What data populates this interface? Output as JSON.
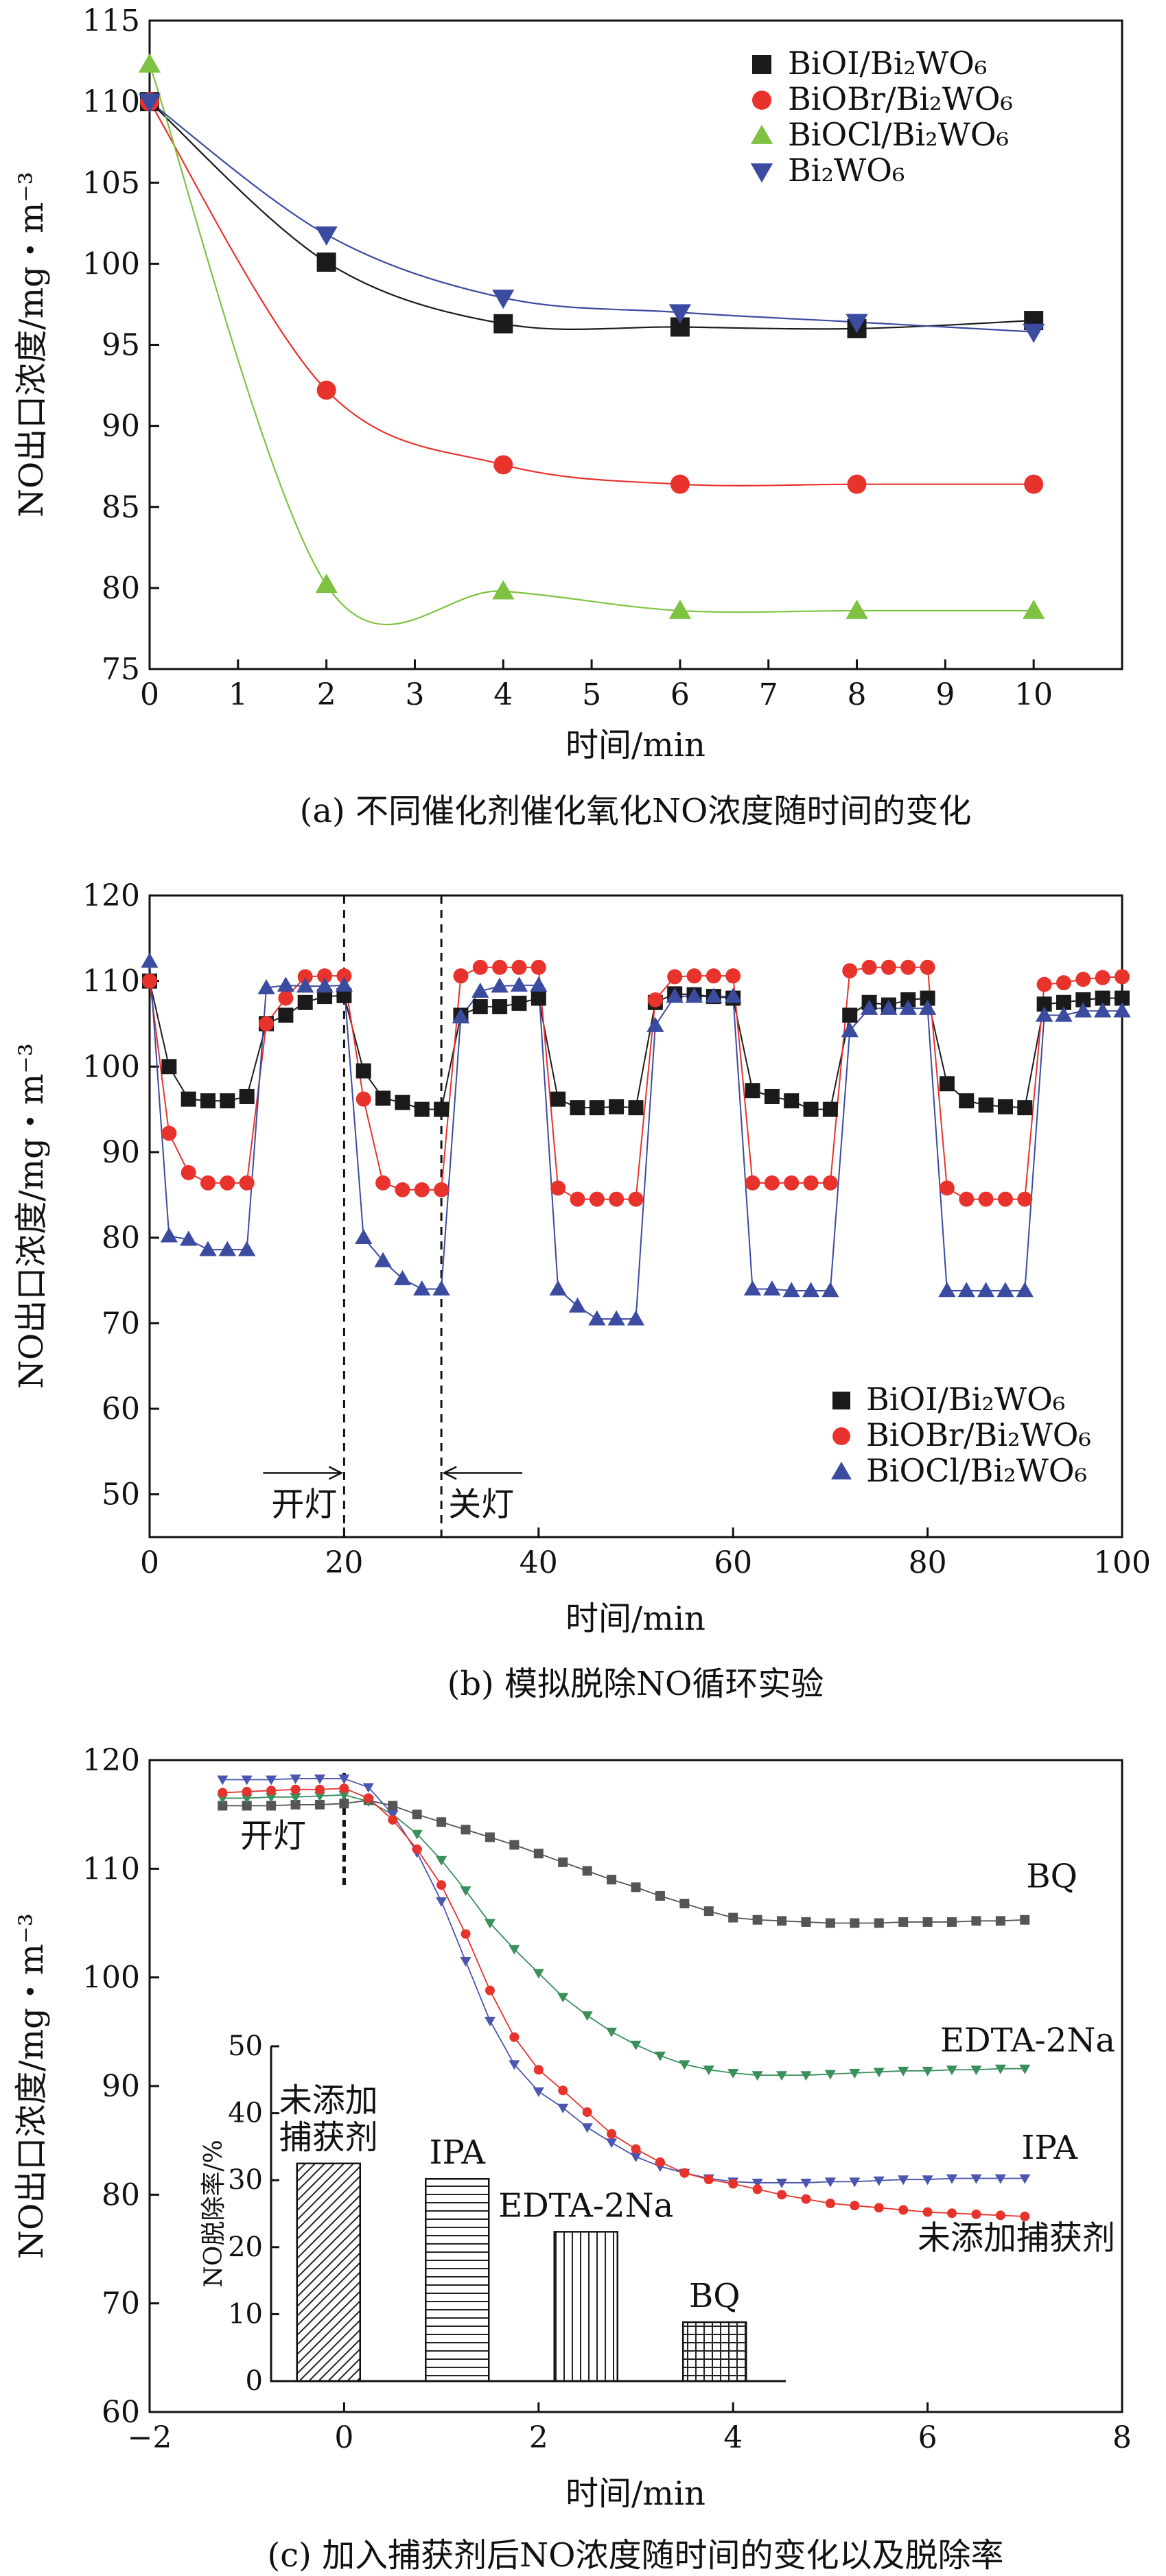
{
  "chart_data": [
    {
      "type": "line",
      "id": "a",
      "caption": "(a) 不同催化剂催化氧化NO浓度随时间的变化",
      "xlabel": "时间/min",
      "ylabel": "NO出口浓度/mg・m⁻³",
      "xlim": [
        0,
        11
      ],
      "ylim": [
        75,
        115
      ],
      "xticks": [
        0,
        1,
        2,
        3,
        4,
        5,
        6,
        7,
        8,
        9,
        10
      ],
      "yticks": [
        75,
        80,
        85,
        90,
        95,
        100,
        105,
        110,
        115
      ],
      "legend_position": "top-right",
      "series": [
        {
          "name": "BiOI/Bi₂WO₆",
          "color": "#1a1a1a",
          "marker": "square",
          "x": [
            0,
            2,
            4,
            6,
            8,
            10
          ],
          "y": [
            110.0,
            100.1,
            96.3,
            96.1,
            96.0,
            96.5
          ]
        },
        {
          "name": "BiOBr/Bi₂WO₆",
          "color": "#e8322c",
          "marker": "circle",
          "x": [
            0,
            2,
            4,
            6,
            8,
            10
          ],
          "y": [
            110.0,
            92.2,
            87.6,
            86.4,
            86.4,
            86.4
          ]
        },
        {
          "name": "BiOCl/Bi₂WO₆",
          "color": "#7fc241",
          "marker": "triangle-up",
          "x": [
            0,
            2,
            4,
            6,
            8,
            10
          ],
          "y": [
            112.3,
            80.2,
            79.8,
            78.6,
            78.6,
            78.6
          ]
        },
        {
          "name": "Bi₂WO₆",
          "color": "#3b4ba0",
          "marker": "triangle-down",
          "x": [
            0,
            2,
            4,
            6,
            8,
            10
          ],
          "y": [
            110.0,
            101.8,
            97.9,
            97.0,
            96.4,
            95.8
          ]
        }
      ]
    },
    {
      "type": "line",
      "id": "b",
      "caption": "(b) 模拟脱除NO循环实验",
      "xlabel": "时间/min",
      "ylabel": "NO出口浓度/mg・m⁻³",
      "xlim": [
        0,
        100
      ],
      "ylim": [
        45,
        120
      ],
      "xticks": [
        0,
        20,
        40,
        60,
        80,
        100
      ],
      "yticks": [
        50,
        60,
        70,
        80,
        90,
        100,
        110,
        120
      ],
      "legend_position": "bottom-right",
      "annotations": [
        {
          "text": "开灯",
          "x": 20
        },
        {
          "text": "关灯",
          "x": 30
        }
      ],
      "series": [
        {
          "name": "BiOI/Bi₂WO₆",
          "color": "#1a1a1a",
          "marker": "square",
          "x": [
            0,
            2,
            4,
            6,
            8,
            10,
            12,
            14,
            16,
            18,
            20,
            22,
            24,
            26,
            28,
            30,
            32,
            34,
            36,
            38,
            40,
            42,
            44,
            46,
            48,
            50,
            52,
            54,
            56,
            58,
            60,
            62,
            64,
            66,
            68,
            70,
            72,
            74,
            76,
            78,
            80,
            82,
            84,
            86,
            88,
            90,
            92,
            94,
            96,
            98,
            100
          ],
          "y": [
            110,
            100,
            96.2,
            96,
            96,
            96.5,
            105,
            106,
            107.5,
            108.2,
            108.3,
            99.5,
            96.3,
            95.8,
            95,
            95,
            106,
            107,
            107,
            107.4,
            108,
            96.2,
            95.2,
            95.2,
            95.3,
            95.2,
            107.5,
            108.5,
            108.4,
            108.2,
            108,
            97.2,
            96.5,
            96,
            95,
            95,
            106,
            107.5,
            107.2,
            107.8,
            108,
            98,
            96,
            95.5,
            95.3,
            95.2,
            107.3,
            107.5,
            107.8,
            108,
            108
          ]
        },
        {
          "name": "BiOBr/Bi₂WO₆",
          "color": "#e8322c",
          "marker": "circle",
          "x": [
            0,
            2,
            4,
            6,
            8,
            10,
            12,
            14,
            16,
            18,
            20,
            22,
            24,
            26,
            28,
            30,
            32,
            34,
            36,
            38,
            40,
            42,
            44,
            46,
            48,
            50,
            52,
            54,
            56,
            58,
            60,
            62,
            64,
            66,
            68,
            70,
            72,
            74,
            76,
            78,
            80,
            82,
            84,
            86,
            88,
            90,
            92,
            94,
            96,
            98,
            100
          ],
          "y": [
            110,
            92.2,
            87.6,
            86.4,
            86.4,
            86.4,
            105,
            108,
            110.5,
            110.6,
            110.6,
            96.2,
            86.4,
            85.6,
            85.6,
            85.6,
            110.6,
            111.6,
            111.6,
            111.6,
            111.6,
            85.8,
            84.5,
            84.5,
            84.5,
            84.5,
            107.8,
            110.5,
            110.6,
            110.6,
            110.6,
            86.4,
            86.4,
            86.4,
            86.4,
            86.4,
            111.2,
            111.6,
            111.6,
            111.6,
            111.6,
            85.8,
            84.5,
            84.5,
            84.5,
            84.5,
            109.6,
            109.8,
            110.2,
            110.4,
            110.5
          ]
        },
        {
          "name": "BiOCl/Bi₂WO₆",
          "color": "#3b4ba0",
          "marker": "triangle-up",
          "x": [
            0,
            2,
            4,
            6,
            8,
            10,
            12,
            14,
            16,
            18,
            20,
            22,
            24,
            26,
            28,
            30,
            32,
            34,
            36,
            38,
            40,
            42,
            44,
            46,
            48,
            50,
            52,
            54,
            56,
            58,
            60,
            62,
            64,
            66,
            68,
            70,
            72,
            74,
            76,
            78,
            80,
            82,
            84,
            86,
            88,
            90,
            92,
            94,
            96,
            98,
            100
          ],
          "y": [
            112.3,
            80.2,
            79.8,
            78.6,
            78.6,
            78.6,
            109.2,
            109.5,
            109.4,
            109.4,
            109.5,
            80,
            77.3,
            75.2,
            74,
            74,
            105.8,
            108.8,
            109.4,
            109.5,
            109.5,
            74,
            72,
            70.5,
            70.5,
            70.5,
            104.8,
            108.2,
            108.2,
            108.2,
            108.2,
            74,
            74,
            73.8,
            73.8,
            73.8,
            104.2,
            106.8,
            106.8,
            106.8,
            106.8,
            73.8,
            73.8,
            73.8,
            73.8,
            73.8,
            106,
            106,
            106.5,
            106.5,
            106.5
          ]
        }
      ]
    },
    {
      "type": "line",
      "id": "c",
      "caption": "(c) 加入捕获剂后NO浓度随时间的变化以及脱除率",
      "xlabel": "时间/min",
      "ylabel": "NO出口浓度/mg・m⁻³",
      "xlim": [
        -2,
        8
      ],
      "ylim": [
        60,
        120
      ],
      "xticks": [
        -2,
        0,
        2,
        4,
        6,
        8
      ],
      "yticks": [
        60,
        70,
        80,
        90,
        100,
        110,
        120
      ],
      "annotations": [
        {
          "text": "开灯",
          "x": 0
        }
      ],
      "series": [
        {
          "name": "BQ",
          "color": "#555555",
          "marker": "square",
          "x": [
            -1.25,
            -1,
            -0.75,
            -0.5,
            -0.25,
            0,
            0.25,
            0.5,
            0.75,
            1,
            1.25,
            1.5,
            1.75,
            2,
            2.25,
            2.5,
            2.75,
            3,
            3.25,
            3.5,
            3.75,
            4,
            4.25,
            4.5,
            4.75,
            5,
            5.25,
            5.5,
            5.75,
            6,
            6.25,
            6.5,
            6.75,
            7
          ],
          "y": [
            115.8,
            115.8,
            115.8,
            115.9,
            115.9,
            116,
            116.3,
            115.8,
            115,
            114.3,
            113.6,
            112.9,
            112.2,
            111.4,
            110.6,
            109.8,
            109,
            108.3,
            107.5,
            106.8,
            106.1,
            105.5,
            105.3,
            105.2,
            105.1,
            105,
            105,
            105,
            105.1,
            105.1,
            105.1,
            105.2,
            105.2,
            105.3
          ]
        },
        {
          "name": "EDTA-2Na",
          "color": "#3a8f5b",
          "marker": "triangle-down",
          "x": [
            -1.25,
            -1,
            -0.75,
            -0.5,
            -0.25,
            0,
            0.25,
            0.5,
            0.75,
            1,
            1.25,
            1.5,
            1.75,
            2,
            2.25,
            2.5,
            2.75,
            3,
            3.25,
            3.5,
            3.75,
            4,
            4.25,
            4.5,
            4.75,
            5,
            5.25,
            5.5,
            5.75,
            6,
            6.25,
            6.5,
            6.75,
            7
          ],
          "y": [
            116.5,
            116.5,
            116.6,
            116.6,
            116.7,
            116.8,
            116.2,
            115,
            113.2,
            110.8,
            108,
            105,
            102.6,
            100.4,
            98.2,
            96.5,
            95,
            93.8,
            92.8,
            92,
            91.5,
            91.2,
            91,
            91,
            91,
            91.1,
            91.2,
            91.3,
            91.4,
            91.4,
            91.5,
            91.5,
            91.6,
            91.6
          ]
        },
        {
          "name": "IPA",
          "color": "#4a56b0",
          "marker": "triangle-down",
          "x": [
            -1.25,
            -1,
            -0.75,
            -0.5,
            -0.25,
            0,
            0.25,
            0.5,
            0.75,
            1,
            1.25,
            1.5,
            1.75,
            2,
            2.25,
            2.5,
            2.75,
            3,
            3.25,
            3.5,
            3.75,
            4,
            4.25,
            4.5,
            4.75,
            5,
            5.25,
            5.5,
            5.75,
            6,
            6.25,
            6.5,
            6.75,
            7
          ],
          "y": [
            118.2,
            118.2,
            118.2,
            118.3,
            118.3,
            118.3,
            117.5,
            115,
            111.5,
            107,
            101.5,
            96,
            92,
            89.5,
            88,
            86.2,
            84.8,
            83.5,
            82.6,
            82,
            81.5,
            81.2,
            81.1,
            81.1,
            81.1,
            81.2,
            81.2,
            81.3,
            81.4,
            81.4,
            81.5,
            81.5,
            81.5,
            81.5
          ]
        },
        {
          "name": "未添加捕获剂",
          "color": "#e8322c",
          "marker": "circle",
          "x": [
            -1.25,
            -1,
            -0.75,
            -0.5,
            -0.25,
            0,
            0.25,
            0.5,
            0.75,
            1,
            1.25,
            1.5,
            1.75,
            2,
            2.25,
            2.5,
            2.75,
            3,
            3.25,
            3.5,
            3.75,
            4,
            4.25,
            4.5,
            4.75,
            5,
            5.25,
            5.5,
            5.75,
            6,
            6.25,
            6.5,
            6.75,
            7
          ],
          "y": [
            117,
            117.1,
            117.2,
            117.3,
            117.3,
            117.4,
            116.5,
            114.5,
            111.8,
            108.5,
            104,
            98.8,
            94.5,
            91.5,
            89.6,
            87.6,
            85.6,
            84.2,
            83,
            82,
            81.4,
            81,
            80.5,
            80,
            79.6,
            79.2,
            79,
            78.8,
            78.6,
            78.4,
            78.3,
            78.2,
            78.1,
            78
          ]
        }
      ],
      "inset": {
        "type": "bar",
        "ylabel": "NO脱除率/%",
        "ylim": [
          0,
          50
        ],
        "yticks": [
          0,
          10,
          20,
          30,
          40,
          50
        ],
        "categories": [
          "未添加捕获剂",
          "IPA",
          "EDTA-2Na",
          "BQ"
        ],
        "category_labels": [
          [
            "未添加",
            "捕获剂"
          ],
          [
            "IPA"
          ],
          [
            "EDTA-2Na"
          ],
          [
            "BQ"
          ]
        ],
        "values": [
          32.5,
          30.2,
          22.3,
          8.8
        ],
        "patterns": [
          "diagonal",
          "horizontal",
          "vertical",
          "grid"
        ]
      }
    }
  ]
}
